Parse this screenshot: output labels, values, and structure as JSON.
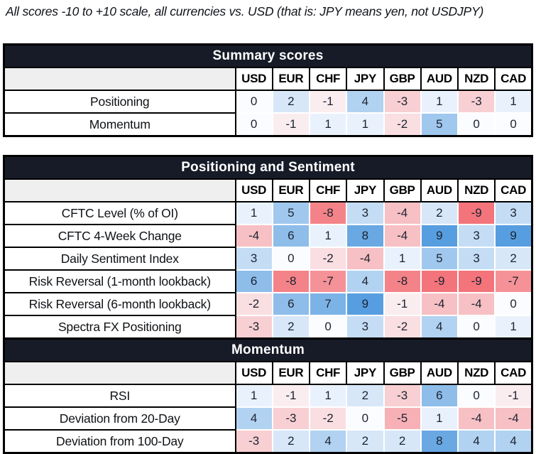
{
  "note": "All scores -10 to +10 scale, all currencies vs. USD (that is: JPY means yen, not USDJPY)",
  "style": {
    "section_header_bg": "#161b27",
    "section_header_text": "#ffffff",
    "corner_cell_bg": "#efefef",
    "table_border": "#000000",
    "heatmap_neutral": "#fbfcff",
    "heatmap_positive": "#4593dc",
    "heatmap_negative": "#f2656c"
  },
  "chart_data": [
    {
      "type": "heatmap",
      "block": 0,
      "title": "Summary scores",
      "columns": [
        "USD",
        "EUR",
        "CHF",
        "JPY",
        "GBP",
        "AUD",
        "NZD",
        "CAD"
      ],
      "value_range": [
        -10,
        10
      ],
      "rows": [
        {
          "label": "Positioning",
          "values": [
            0,
            2,
            -1,
            4,
            -3,
            1,
            -3,
            1
          ]
        },
        {
          "label": "Momentum",
          "values": [
            0,
            -1,
            1,
            1,
            -2,
            5,
            0,
            0
          ]
        }
      ]
    },
    {
      "type": "heatmap",
      "block": 1,
      "title": "Positioning and Sentiment",
      "columns": [
        "USD",
        "EUR",
        "CHF",
        "JPY",
        "GBP",
        "AUD",
        "NZD",
        "CAD"
      ],
      "value_range": [
        -10,
        10
      ],
      "rows": [
        {
          "label": "CFTC Level (% of OI)",
          "values": [
            1,
            5,
            -8,
            3,
            -4,
            2,
            -9,
            3
          ]
        },
        {
          "label": "CFTC 4-Week Change",
          "values": [
            -4,
            6,
            1,
            8,
            -4,
            9,
            3,
            9
          ]
        },
        {
          "label": "Daily Sentiment Index",
          "values": [
            3,
            0,
            -2,
            -4,
            1,
            5,
            3,
            2
          ]
        },
        {
          "label": "Risk Reversal (1-month lookback)",
          "values": [
            6,
            -8,
            -7,
            4,
            -8,
            -9,
            -9,
            -7
          ]
        },
        {
          "label": "Risk Reversal (6-month lookback)",
          "values": [
            -2,
            6,
            7,
            9,
            -1,
            -4,
            -4,
            0
          ]
        },
        {
          "label": "Spectra FX Positioning",
          "values": [
            -3,
            2,
            0,
            3,
            -2,
            4,
            0,
            1
          ]
        }
      ]
    },
    {
      "type": "heatmap",
      "block": 1,
      "title": "Momentum",
      "columns": [
        "USD",
        "EUR",
        "CHF",
        "JPY",
        "GBP",
        "AUD",
        "NZD",
        "CAD"
      ],
      "value_range": [
        -10,
        10
      ],
      "rows": [
        {
          "label": "RSI",
          "values": [
            1,
            -1,
            1,
            2,
            -3,
            6,
            0,
            -1
          ]
        },
        {
          "label": "Deviation from 20-Day",
          "values": [
            4,
            -3,
            -2,
            0,
            -5,
            1,
            -4,
            -4
          ]
        },
        {
          "label": "Deviation from 100-Day",
          "values": [
            -3,
            2,
            4,
            2,
            2,
            8,
            4,
            4
          ]
        }
      ]
    }
  ]
}
